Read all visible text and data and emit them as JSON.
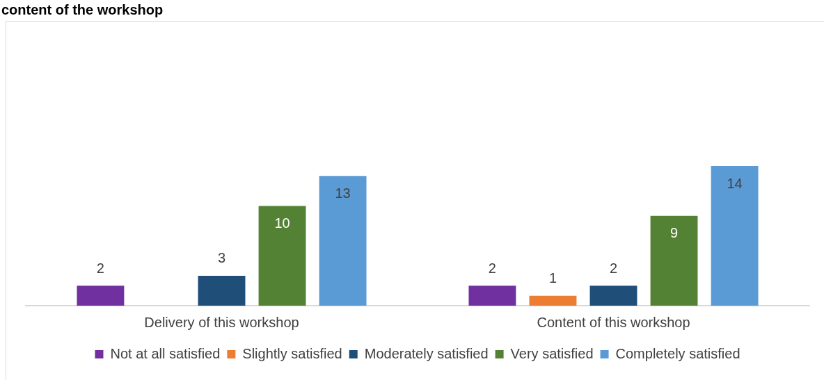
{
  "chart_data": {
    "type": "bar",
    "title": "content of the workshop",
    "categories": [
      "Delivery of this workshop",
      "Content of this workshop"
    ],
    "series": [
      {
        "name": "Not at all satisfied",
        "color": "#7030a0",
        "values": [
          2,
          2
        ]
      },
      {
        "name": "Slightly satisfied",
        "color": "#ed7d31",
        "values": [
          null,
          1
        ]
      },
      {
        "name": "Moderately satisfied",
        "color": "#1f4e79",
        "values": [
          3,
          2
        ]
      },
      {
        "name": "Very satisfied",
        "color": "#548235",
        "values": [
          10,
          9
        ]
      },
      {
        "name": "Completely satisfied",
        "color": "#5b9bd5",
        "values": [
          13,
          14
        ]
      }
    ],
    "data_labels": true,
    "legend": "bottom"
  }
}
